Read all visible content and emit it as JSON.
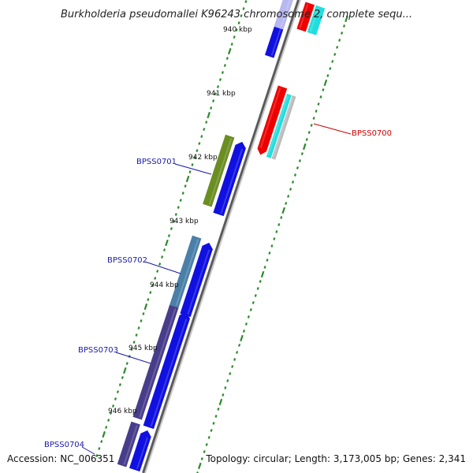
{
  "title": "Burkholderia pseudomallei K96243 chromosome 2, complete sequ...",
  "footer": {
    "accession": "Accession: NC_006351",
    "summary": "Topology: circular; Length: 3,173,005 bp; Genes: 2,341"
  },
  "colors": {
    "backbone": "#8a8a8a",
    "tick": "#2a8a2a",
    "label": "#1a1aa8",
    "label_right": "#cc0000",
    "forward_cds": "#1010e0",
    "reverse_cds": "#ee0000",
    "cyan_feature": "#22dddd",
    "gray_feature": "#bbbbbb",
    "olive_gene": "#6b8e23",
    "steelblue_gene": "#4a7fa8",
    "darkslate_gene": "#483d8b"
  },
  "kbp_labels": [
    "940 kbp",
    "941 kbp",
    "942 kbp",
    "943 kbp",
    "944 kbp",
    "945 kbp",
    "946 kbp"
  ],
  "gene_labels": {
    "left": [
      "BPSS0701",
      "BPSS0702",
      "BPSS0703",
      "BPSS0704"
    ],
    "right": [
      "BPSS0700"
    ]
  }
}
